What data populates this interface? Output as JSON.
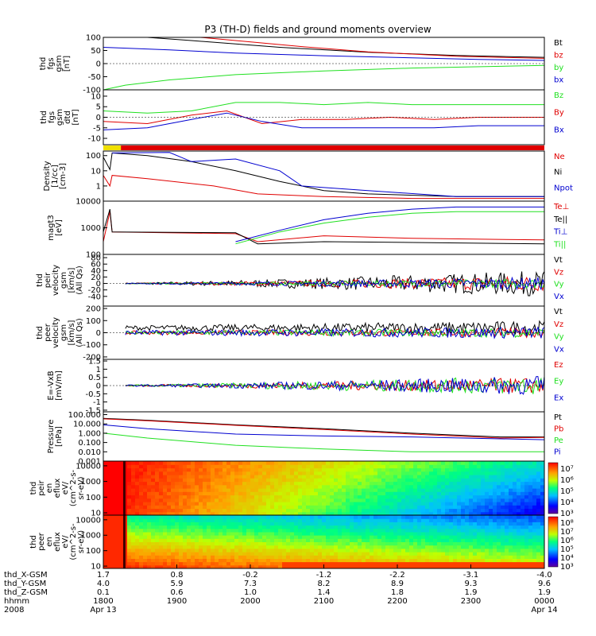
{
  "title": "P3 (TH-D) fields and ground moments overview",
  "colors": {
    "black": "#000000",
    "red": "#e00000",
    "green": "#20e020",
    "blue": "#0000d0",
    "yellow": "#f0e000"
  },
  "panels": [
    {
      "id": "fgs_gsm",
      "ylabel": [
        "thd",
        "fgs",
        "gsm",
        "[nT]"
      ],
      "yrange": [
        -100,
        100
      ],
      "yticks": [
        100,
        50,
        0,
        -50,
        -100
      ],
      "series": [
        {
          "name": "Bt",
          "color": "black",
          "points": [
            [
              0,
              115
            ],
            [
              0.1,
              105
            ],
            [
              0.2,
              88
            ],
            [
              0.4,
              62
            ],
            [
              0.6,
              43
            ],
            [
              0.8,
              31
            ],
            [
              1,
              24
            ]
          ]
        },
        {
          "name": "bz",
          "color": "red",
          "points": [
            [
              0.22,
              100
            ],
            [
              0.3,
              88
            ],
            [
              0.45,
              65
            ],
            [
              0.6,
              45
            ],
            [
              0.8,
              28
            ],
            [
              1,
              20
            ]
          ]
        },
        {
          "name": "by",
          "color": "green",
          "points": [
            [
              0,
              -100
            ],
            [
              0.05,
              -82
            ],
            [
              0.15,
              -62
            ],
            [
              0.3,
              -42
            ],
            [
              0.5,
              -28
            ],
            [
              0.7,
              -17
            ],
            [
              1,
              -7
            ]
          ]
        },
        {
          "name": "bx",
          "color": "blue",
          "points": [
            [
              0,
              62
            ],
            [
              0.15,
              52
            ],
            [
              0.3,
              40
            ],
            [
              0.5,
              30
            ],
            [
              0.7,
              22
            ],
            [
              0.85,
              16
            ],
            [
              1,
              12
            ]
          ]
        }
      ]
    },
    {
      "id": "fgs_gsm_dt",
      "ylabel": [
        "thd",
        "fgs",
        "gsm",
        "dtd",
        "[nT]"
      ],
      "yrange": [
        -13,
        13
      ],
      "yticks": [
        10,
        5,
        0,
        -5,
        -10
      ],
      "series": [
        {
          "name": "Bz",
          "color": "green",
          "points": [
            [
              0,
              3
            ],
            [
              0.1,
              2
            ],
            [
              0.2,
              3
            ],
            [
              0.3,
              7
            ],
            [
              0.4,
              7
            ],
            [
              0.5,
              6
            ],
            [
              0.6,
              7
            ],
            [
              0.7,
              6
            ],
            [
              0.8,
              6
            ],
            [
              0.9,
              6
            ],
            [
              1,
              6
            ]
          ]
        },
        {
          "name": "By",
          "color": "red",
          "points": [
            [
              0,
              -2
            ],
            [
              0.1,
              -3
            ],
            [
              0.2,
              1
            ],
            [
              0.28,
              3
            ],
            [
              0.36,
              -3
            ],
            [
              0.45,
              -1
            ],
            [
              0.55,
              -1
            ],
            [
              0.65,
              0
            ],
            [
              0.75,
              -1
            ],
            [
              0.85,
              0
            ],
            [
              1,
              0
            ]
          ]
        },
        {
          "name": "Bx",
          "color": "blue",
          "points": [
            [
              0,
              -6
            ],
            [
              0.1,
              -5
            ],
            [
              0.2,
              -1
            ],
            [
              0.28,
              2
            ],
            [
              0.36,
              -2
            ],
            [
              0.45,
              -5
            ],
            [
              0.55,
              -5
            ],
            [
              0.65,
              -5
            ],
            [
              0.75,
              -5
            ],
            [
              0.85,
              -4
            ],
            [
              1,
              -4
            ]
          ]
        }
      ]
    },
    {
      "id": "density",
      "ylabel": [
        "Density",
        "[1/cc]",
        "[cm-3]"
      ],
      "yrange": [
        0.1,
        200
      ],
      "log": true,
      "yticks": [
        100,
        10,
        1
      ],
      "series": [
        {
          "name": "Ne",
          "color": "red",
          "points": [
            [
              0,
              5
            ],
            [
              0.015,
              1
            ],
            [
              0.02,
              5
            ],
            [
              0.1,
              3
            ],
            [
              0.25,
              1
            ],
            [
              0.35,
              0.3
            ],
            [
              0.5,
              0.2
            ],
            [
              0.7,
              0.15
            ],
            [
              1,
              0.15
            ]
          ]
        },
        {
          "name": "Ni",
          "color": "black",
          "points": [
            [
              0,
              80
            ],
            [
              0.015,
              12
            ],
            [
              0.02,
              150
            ],
            [
              0.1,
              100
            ],
            [
              0.2,
              40
            ],
            [
              0.3,
              10
            ],
            [
              0.4,
              2
            ],
            [
              0.5,
              0.5
            ],
            [
              0.6,
              0.3
            ],
            [
              0.8,
              0.2
            ],
            [
              1,
              0.2
            ]
          ]
        },
        {
          "name": "Npot",
          "color": "blue",
          "points": [
            [
              0.02,
              150
            ],
            [
              0.15,
              160
            ],
            [
              0.2,
              40
            ],
            [
              0.3,
              60
            ],
            [
              0.4,
              10
            ],
            [
              0.45,
              1
            ],
            [
              0.6,
              0.5
            ],
            [
              0.8,
              0.2
            ],
            [
              1,
              0.2
            ]
          ]
        }
      ]
    },
    {
      "id": "temperature",
      "ylabel": [
        "magt3",
        "[eV]"
      ],
      "yrange": [
        100,
        10000
      ],
      "log": true,
      "yticks": [
        10000,
        1000,
        100
      ],
      "series": [
        {
          "name": "Te⊥",
          "color": "red",
          "points": [
            [
              0,
              300
            ],
            [
              0.015,
              4000
            ],
            [
              0.02,
              700
            ],
            [
              0.3,
              600
            ],
            [
              0.35,
              300
            ],
            [
              0.5,
              500
            ],
            [
              0.7,
              400
            ],
            [
              1,
              350
            ]
          ]
        },
        {
          "name": "Te||",
          "color": "black",
          "points": [
            [
              0,
              700
            ],
            [
              0.015,
              5000
            ],
            [
              0.02,
              700
            ],
            [
              0.3,
              650
            ],
            [
              0.35,
              250
            ],
            [
              0.5,
              300
            ],
            [
              0.7,
              280
            ],
            [
              1,
              250
            ]
          ]
        },
        {
          "name": "Ti⊥",
          "color": "blue",
          "points": [
            [
              0.3,
              300
            ],
            [
              0.4,
              800
            ],
            [
              0.5,
              2000
            ],
            [
              0.6,
              3500
            ],
            [
              0.7,
              5000
            ],
            [
              0.8,
              6000
            ],
            [
              1,
              6000
            ]
          ]
        },
        {
          "name": "Ti||",
          "color": "green",
          "points": [
            [
              0.3,
              250
            ],
            [
              0.4,
              700
            ],
            [
              0.5,
              1500
            ],
            [
              0.6,
              2500
            ],
            [
              0.7,
              3500
            ],
            [
              0.8,
              4000
            ],
            [
              1,
              4000
            ]
          ]
        }
      ]
    },
    {
      "id": "peir_velocity",
      "ylabel": [
        "thd",
        "peir",
        "velocity",
        "gsm",
        "[km/s]",
        "(All Qs)"
      ],
      "yrange": [
        -70,
        90
      ],
      "yticks": [
        80,
        60,
        40,
        20,
        0,
        -20,
        -40
      ],
      "noise": true,
      "series": [
        {
          "name": "Vt",
          "color": "black",
          "base": 0,
          "amp": [
            2,
            40
          ]
        },
        {
          "name": "Vz",
          "color": "red",
          "base": 0,
          "amp": [
            1,
            25
          ]
        },
        {
          "name": "Vy",
          "color": "green",
          "base": 0,
          "amp": [
            1,
            15
          ]
        },
        {
          "name": "Vx",
          "color": "blue",
          "base": 0,
          "amp": [
            1,
            20
          ]
        }
      ]
    },
    {
      "id": "peer_velocity",
      "ylabel": [
        "thd",
        "peer",
        "velocity",
        "gsm",
        "[km/s]",
        "(All Qs)"
      ],
      "yrange": [
        -220,
        220
      ],
      "yticks": [
        200,
        100,
        0,
        -100,
        -200
      ],
      "noise": true,
      "series": [
        {
          "name": "Vt",
          "color": "black",
          "base": 40,
          "amp": [
            20,
            60
          ]
        },
        {
          "name": "Vz",
          "color": "red",
          "base": 0,
          "amp": [
            15,
            40
          ]
        },
        {
          "name": "Vy",
          "color": "green",
          "base": 0,
          "amp": [
            15,
            40
          ]
        },
        {
          "name": "Vx",
          "color": "blue",
          "base": 0,
          "amp": [
            20,
            50
          ]
        }
      ]
    },
    {
      "id": "efield",
      "ylabel": [
        "E=-VxB",
        "[mV/m]"
      ],
      "yrange": [
        -1.6,
        1.6
      ],
      "yticks": [
        1.5,
        1.0,
        0.5,
        0.0,
        -0.5,
        -1.0,
        -1.5
      ],
      "noise": true,
      "series": [
        {
          "name": "Ez",
          "color": "red",
          "base": 0,
          "amp": [
            0.05,
            0.5
          ]
        },
        {
          "name": "Ey",
          "color": "green",
          "base": 0,
          "amp": [
            0.05,
            0.6
          ]
        },
        {
          "name": "Ex",
          "color": "blue",
          "base": 0,
          "amp": [
            0.05,
            0.6
          ]
        }
      ]
    },
    {
      "id": "pressure",
      "ylabel": [
        "Pressure",
        "[nPa]"
      ],
      "yrange": [
        0.001,
        200
      ],
      "log": true,
      "yticks": [
        "100.000",
        "10.000",
        "1.000",
        "0.100",
        "0.010",
        "0.001"
      ],
      "series": [
        {
          "name": "Pt",
          "color": "black",
          "points": [
            [
              0,
              40
            ],
            [
              0.1,
              25
            ],
            [
              0.3,
              8
            ],
            [
              0.5,
              3
            ],
            [
              0.7,
              1
            ],
            [
              0.9,
              0.4
            ],
            [
              1,
              0.4
            ]
          ]
        },
        {
          "name": "Pb",
          "color": "red",
          "points": [
            [
              0,
              35
            ],
            [
              0.1,
              22
            ],
            [
              0.3,
              7
            ],
            [
              0.5,
              2.5
            ],
            [
              0.7,
              0.8
            ],
            [
              0.9,
              0.3
            ],
            [
              1,
              0.35
            ]
          ]
        },
        {
          "name": "Pe",
          "color": "green",
          "points": [
            [
              0,
              1
            ],
            [
              0.1,
              0.3
            ],
            [
              0.3,
              0.05
            ],
            [
              0.5,
              0.02
            ],
            [
              0.7,
              0.01
            ],
            [
              1,
              0.01
            ]
          ]
        },
        {
          "name": "Pi",
          "color": "blue",
          "points": [
            [
              0,
              8
            ],
            [
              0.1,
              3
            ],
            [
              0.3,
              0.8
            ],
            [
              0.5,
              0.5
            ],
            [
              0.7,
              0.4
            ],
            [
              1,
              0.2
            ]
          ]
        }
      ]
    }
  ],
  "spectrograms": [
    {
      "ylabel": [
        "thd",
        "peir",
        "en",
        "eflux",
        "eV/",
        "(cm^2-s-",
        "sr-eV)"
      ],
      "yticks": [
        "10000",
        "1000",
        "100",
        "10"
      ],
      "cbar": [
        "10⁷",
        "10⁶",
        "10⁵",
        "10⁴",
        "10³"
      ]
    },
    {
      "ylabel": [
        "thd",
        "peer",
        "en",
        "eflux",
        "eV/",
        "(cm^2-s-",
        "sr-eV)"
      ],
      "yticks": [
        "10000",
        "1000",
        "100",
        "10"
      ],
      "cbar": [
        "10⁸",
        "10⁷",
        "10⁶",
        "10⁵",
        "10⁴",
        "10³"
      ]
    }
  ],
  "xaxis": {
    "rows": [
      {
        "label": "thd_X-GSM",
        "values": [
          "1.7",
          "0.8",
          "-0.2",
          "-1.2",
          "-2.2",
          "-3.1",
          "-4.0"
        ]
      },
      {
        "label": "thd_Y-GSM",
        "values": [
          "4.0",
          "5.9",
          "7.3",
          "8.2",
          "8.9",
          "9.3",
          "9.6"
        ]
      },
      {
        "label": "thd_Z-GSM",
        "values": [
          "0.1",
          "0.6",
          "1.0",
          "1.4",
          "1.8",
          "1.9",
          "1.9"
        ]
      },
      {
        "label": "hhmm",
        "values": [
          "1800",
          "1900",
          "2000",
          "2100",
          "2200",
          "2300",
          "0000"
        ]
      },
      {
        "label": "2008",
        "values": [
          "Apr 13",
          "",
          "",
          "",
          "",
          "",
          "Apr 14"
        ]
      }
    ]
  }
}
